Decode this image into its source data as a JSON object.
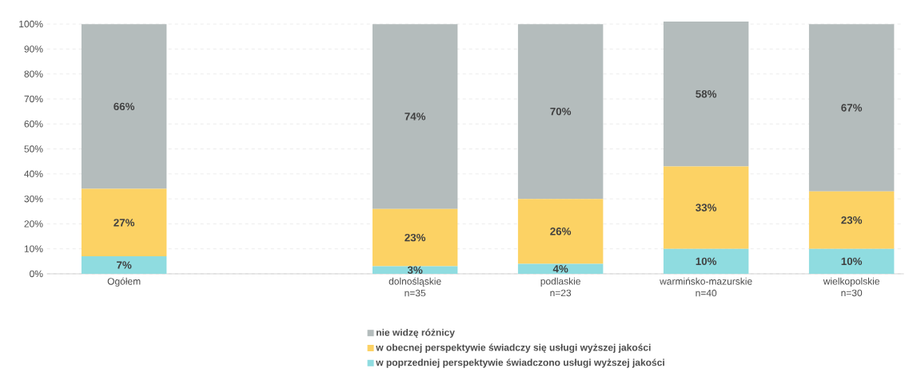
{
  "chart_data": {
    "type": "bar",
    "stacked": true,
    "categories": [
      "Ogółem",
      null,
      "dolnośląskie\nn=35",
      "podlaskie\nn=23",
      "warmińsko-mazurskie\nn=40",
      "wielkopolskie\nn=30"
    ],
    "series": [
      {
        "name": "w poprzedniej perspektywie świadczono usługi wyższej jakości",
        "color": "#8fdce0",
        "values": [
          7,
          null,
          3,
          4,
          10,
          10
        ],
        "value_labels": [
          "7%",
          null,
          "3%",
          "4%",
          "10%",
          "10%"
        ]
      },
      {
        "name": "w obecnej perspektywie świadczy się usługi wyższej jakości",
        "color": "#fcd264",
        "values": [
          27,
          null,
          23,
          26,
          33,
          23
        ],
        "value_labels": [
          "27%",
          null,
          "23%",
          "26%",
          "33%",
          "23%"
        ]
      },
      {
        "name": "nie widzę różnicy",
        "color": "#b4bcbc",
        "values": [
          66,
          null,
          74,
          70,
          58,
          67
        ],
        "value_labels": [
          "66%",
          null,
          "74%",
          "70%",
          "58%",
          "67%"
        ]
      }
    ],
    "ylim": [
      0,
      101
    ],
    "yticks": [
      {
        "value": 0,
        "label": "0%"
      },
      {
        "value": 10,
        "label": "10%"
      },
      {
        "value": 20,
        "label": "20%"
      },
      {
        "value": 30,
        "label": "30%"
      },
      {
        "value": 40,
        "label": "40%"
      },
      {
        "value": 50,
        "label": "50%"
      },
      {
        "value": 60,
        "label": "60%"
      },
      {
        "value": 70,
        "label": "70%"
      },
      {
        "value": 80,
        "label": "80%"
      },
      {
        "value": 90,
        "label": "90%"
      },
      {
        "value": 100,
        "label": "100%"
      }
    ],
    "grid": "y",
    "legend": "bottom"
  }
}
